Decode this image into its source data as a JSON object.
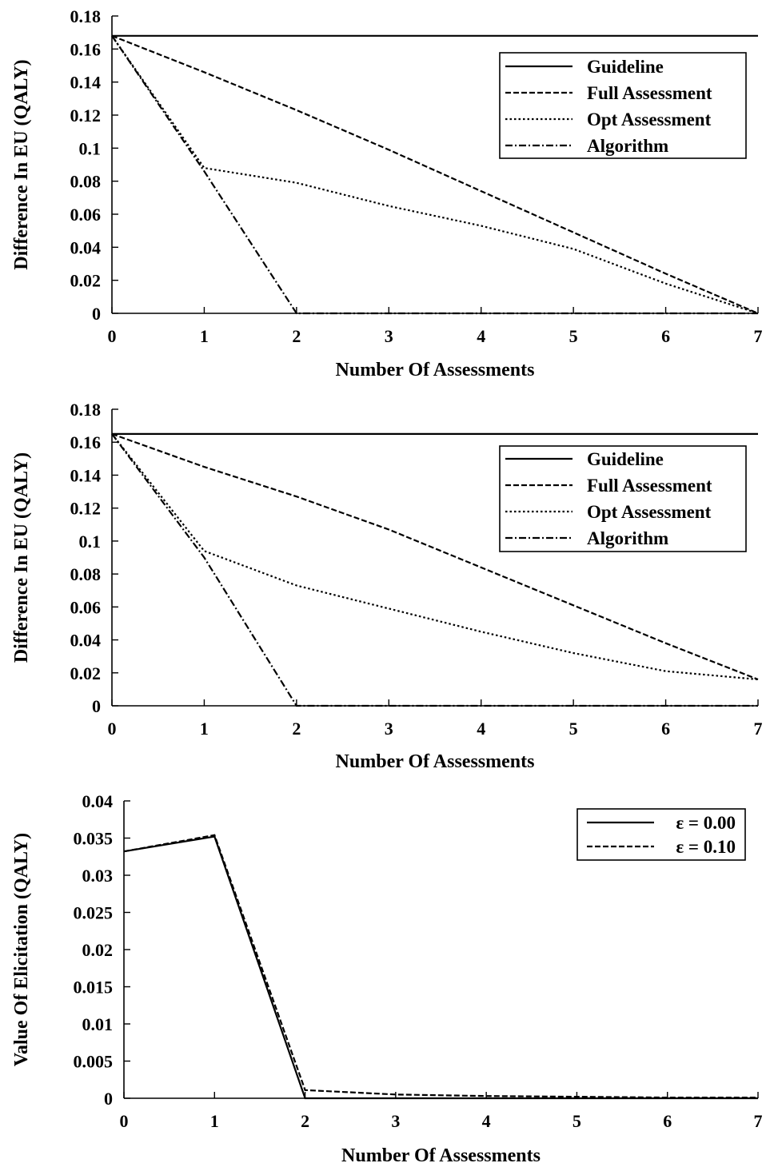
{
  "chart_data": [
    {
      "type": "line",
      "title": "",
      "xlabel": "Number Of Assessments",
      "ylabel": "Difference In EU (QALY)",
      "xlim": [
        0,
        7
      ],
      "ylim": [
        0,
        0.18
      ],
      "xticks": [
        "0",
        "1",
        "2",
        "3",
        "4",
        "5",
        "6",
        "7"
      ],
      "yticks": [
        "0",
        "0.02",
        "0.04",
        "0.06",
        "0.08",
        "0.1",
        "0.12",
        "0.14",
        "0.16",
        "0.18"
      ],
      "grid": false,
      "legend": "top-right",
      "series": [
        {
          "name": "Guideline",
          "style": "solid",
          "x": [
            0,
            7
          ],
          "y": [
            0.168,
            0.168
          ]
        },
        {
          "name": "Full Assessment",
          "style": "dashed",
          "x": [
            0,
            1,
            2,
            3,
            4,
            5,
            6,
            7
          ],
          "y": [
            0.168,
            0.146,
            0.123,
            0.099,
            0.074,
            0.049,
            0.024,
            0
          ]
        },
        {
          "name": "Opt Assessment",
          "style": "dotted",
          "x": [
            0,
            1,
            2,
            3,
            4,
            5,
            6,
            7
          ],
          "y": [
            0.168,
            0.088,
            0.079,
            0.065,
            0.053,
            0.039,
            0.018,
            0
          ]
        },
        {
          "name": "Algorithm",
          "style": "dashdot",
          "x": [
            0,
            1,
            2,
            3,
            4,
            5,
            6,
            7
          ],
          "y": [
            0.168,
            0.086,
            0,
            0,
            0,
            0,
            0,
            0
          ]
        }
      ]
    },
    {
      "type": "line",
      "title": "",
      "xlabel": "Number Of Assessments",
      "ylabel": "Difference In EU (QALY)",
      "xlim": [
        0,
        7
      ],
      "ylim": [
        0,
        0.18
      ],
      "xticks": [
        "0",
        "1",
        "2",
        "3",
        "4",
        "5",
        "6",
        "7"
      ],
      "yticks": [
        "0",
        "0.02",
        "0.04",
        "0.06",
        "0.08",
        "0.1",
        "0.12",
        "0.14",
        "0.16",
        "0.18"
      ],
      "grid": false,
      "legend": "top-right",
      "series": [
        {
          "name": "Guideline",
          "style": "solid",
          "x": [
            0,
            7
          ],
          "y": [
            0.165,
            0.165
          ]
        },
        {
          "name": "Full Assessment",
          "style": "dashed",
          "x": [
            0,
            1,
            2,
            3,
            4,
            5,
            6,
            7
          ],
          "y": [
            0.165,
            0.145,
            0.127,
            0.107,
            0.084,
            0.061,
            0.038,
            0.016
          ]
        },
        {
          "name": "Opt Assessment",
          "style": "dotted",
          "x": [
            0,
            1,
            2,
            3,
            4,
            5,
            6,
            7
          ],
          "y": [
            0.165,
            0.094,
            0.073,
            0.059,
            0.045,
            0.032,
            0.021,
            0.016
          ]
        },
        {
          "name": "Algorithm",
          "style": "dashdot",
          "x": [
            0,
            1,
            2,
            3,
            4,
            5,
            6,
            7
          ],
          "y": [
            0.165,
            0.09,
            0,
            0,
            0,
            0,
            0,
            0
          ]
        }
      ]
    },
    {
      "type": "line",
      "title": "",
      "xlabel": "Number Of Assessments",
      "ylabel": "Value Of Elicitation (QALY)",
      "xlim": [
        0,
        7
      ],
      "ylim": [
        0,
        0.04
      ],
      "xticks": [
        "0",
        "1",
        "2",
        "3",
        "4",
        "5",
        "6",
        "7"
      ],
      "yticks": [
        "0",
        "0.005",
        "0.01",
        "0.015",
        "0.02",
        "0.025",
        "0.03",
        "0.035",
        "0.04"
      ],
      "grid": false,
      "legend": "top-right",
      "series": [
        {
          "name": "ε = 0.00",
          "style": "solid",
          "x": [
            0,
            1,
            2,
            3,
            4,
            5,
            6,
            7
          ],
          "y": [
            0.0332,
            0.0352,
            0,
            0,
            0,
            0,
            0,
            0
          ]
        },
        {
          "name": "ε = 0.10",
          "style": "dashed",
          "x": [
            0,
            1,
            2,
            3,
            4,
            5,
            6,
            7
          ],
          "y": [
            0.0332,
            0.0354,
            0.0011,
            0.0005,
            0.0003,
            0.0002,
            0.0001,
            0.0001
          ]
        }
      ]
    }
  ]
}
